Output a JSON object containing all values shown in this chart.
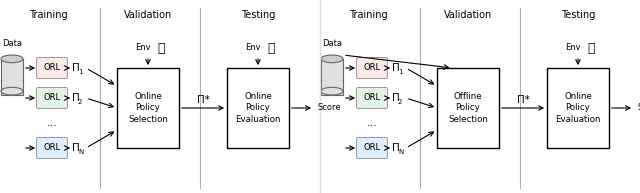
{
  "bg_color": "#ffffff",
  "left": {
    "title_training": "Training",
    "title_validation": "Validation",
    "title_testing": "Testing",
    "data_label": "Data",
    "orl_colors": [
      "#fce8e4",
      "#e4f4e4",
      "#ddeeff"
    ],
    "box1_label": "Online\nPolicy\nSelection",
    "box2_label": "Online\nPolicy\nEvaluation",
    "pi_star": "Π*",
    "score": "Score",
    "env_label": "Env",
    "has_env_validation": true,
    "has_env_testing": true
  },
  "right": {
    "title_training": "Training",
    "title_validation": "Validation",
    "title_testing": "Testing",
    "data_label": "Data",
    "orl_colors": [
      "#fce8e4",
      "#e4f4e4",
      "#ddeeff"
    ],
    "box1_label": "Offline\nPolicy\nSelection",
    "box2_label": "Online\nPolicy\nEvaluation",
    "pi_star": "Π*",
    "score": "Score",
    "env_label": "Env",
    "has_env_validation": false,
    "has_env_testing": true
  }
}
